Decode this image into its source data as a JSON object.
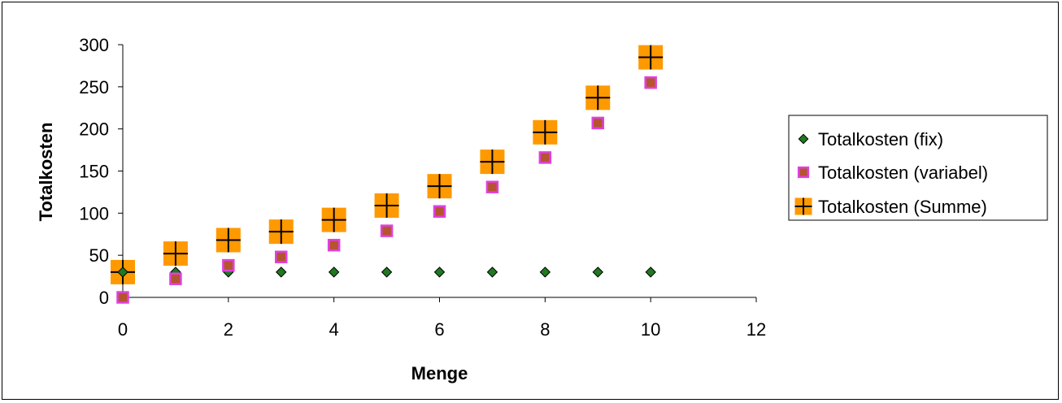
{
  "chart_data": {
    "type": "scatter",
    "xlabel": "Menge",
    "ylabel": "Totalkosten",
    "xlim": [
      0,
      12
    ],
    "ylim": [
      0,
      300
    ],
    "xticks": [
      0,
      2,
      4,
      6,
      8,
      10,
      12
    ],
    "yticks": [
      0,
      50,
      100,
      150,
      200,
      250,
      300
    ],
    "grid": false,
    "legend_position": "right",
    "series": [
      {
        "name": "Totalkosten (fix)",
        "marker": "diamond",
        "color": "#1f7a1f",
        "x": [
          0,
          1,
          2,
          3,
          4,
          5,
          6,
          7,
          8,
          9,
          10
        ],
        "y": [
          30,
          30,
          30,
          30,
          30,
          30,
          30,
          30,
          30,
          30,
          30
        ]
      },
      {
        "name": "Totalkosten (variabel)",
        "marker": "square",
        "color": "#b5542f",
        "edge_color": "#e040e0",
        "x": [
          0,
          1,
          2,
          3,
          4,
          5,
          6,
          7,
          8,
          9,
          10
        ],
        "y": [
          0,
          22,
          38,
          48,
          62,
          79,
          102,
          131,
          166,
          207,
          255
        ]
      },
      {
        "name": "Totalkosten (Summe)",
        "marker": "plus-square",
        "color": "#ff9900",
        "x": [
          0,
          1,
          2,
          3,
          4,
          5,
          6,
          7,
          8,
          9,
          10
        ],
        "y": [
          30,
          52,
          68,
          78,
          92,
          109,
          132,
          161,
          196,
          237,
          285
        ]
      }
    ]
  }
}
